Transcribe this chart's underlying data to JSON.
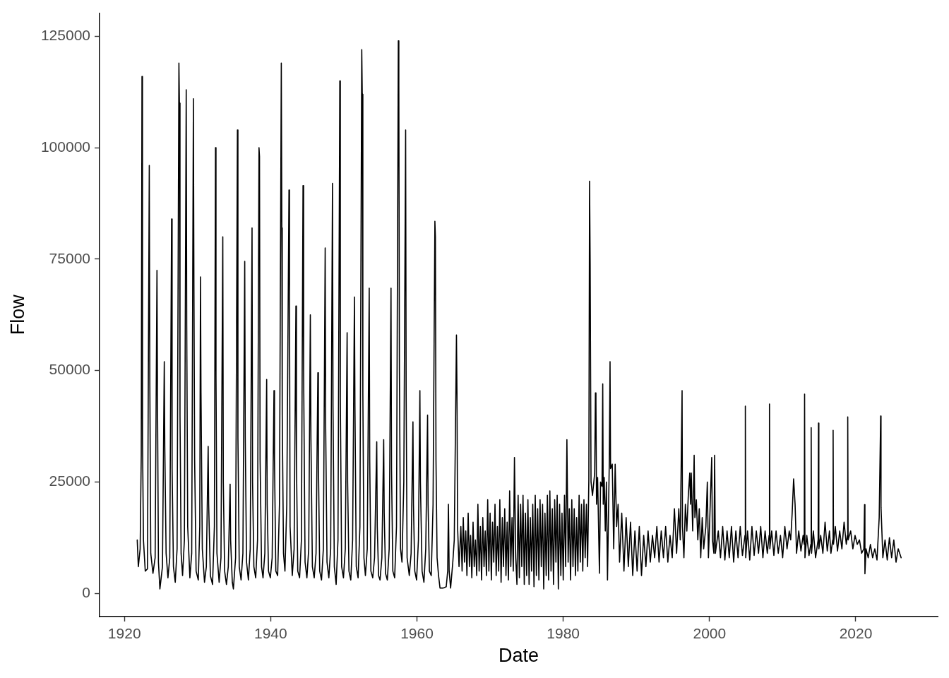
{
  "chart_data": {
    "type": "line",
    "xlabel": "Date",
    "ylabel": "Flow",
    "color": "#000000",
    "x": [
      1921.75,
      1921.9,
      1922.15,
      1922.3,
      1922.4,
      1922.47,
      1922.6,
      1922.85,
      1923.15,
      1923.4,
      1923.47,
      1923.6,
      1923.9,
      1924.2,
      1924.45,
      1924.52,
      1924.65,
      1924.85,
      1925.2,
      1925.45,
      1925.52,
      1925.7,
      1925.95,
      1926.2,
      1926.45,
      1926.52,
      1926.7,
      1926.95,
      1927.2,
      1927.45,
      1927.52,
      1927.6,
      1927.75,
      1927.95,
      1928.2,
      1928.45,
      1928.52,
      1928.65,
      1928.95,
      1929.2,
      1929.43,
      1929.5,
      1929.6,
      1929.8,
      1930.1,
      1930.3,
      1930.4,
      1930.47,
      1930.65,
      1930.95,
      1931.2,
      1931.45,
      1931.52,
      1931.75,
      1932.05,
      1932.3,
      1932.45,
      1932.52,
      1932.65,
      1932.95,
      1933.2,
      1933.45,
      1933.52,
      1933.7,
      1933.95,
      1934.2,
      1934.45,
      1934.52,
      1934.75,
      1934.9,
      1935.2,
      1935.45,
      1935.52,
      1935.7,
      1935.95,
      1936.2,
      1936.45,
      1936.52,
      1936.7,
      1936.95,
      1937.2,
      1937.45,
      1937.52,
      1937.7,
      1937.95,
      1938.2,
      1938.4,
      1938.47,
      1938.55,
      1938.75,
      1938.95,
      1939.2,
      1939.45,
      1939.52,
      1939.7,
      1939.95,
      1940.2,
      1940.45,
      1940.52,
      1940.7,
      1940.95,
      1941.2,
      1941.45,
      1941.52,
      1941.58,
      1941.75,
      1941.95,
      1942.2,
      1942.5,
      1942.57,
      1942.65,
      1942.95,
      1943.2,
      1943.45,
      1943.52,
      1943.7,
      1943.95,
      1944.2,
      1944.42,
      1944.5,
      1944.7,
      1944.95,
      1945.2,
      1945.42,
      1945.5,
      1945.7,
      1945.95,
      1946.2,
      1946.45,
      1946.52,
      1946.7,
      1946.95,
      1947.2,
      1947.45,
      1947.52,
      1947.7,
      1947.95,
      1948.2,
      1948.45,
      1948.52,
      1948.7,
      1948.95,
      1949.2,
      1949.45,
      1949.52,
      1949.7,
      1949.95,
      1950.2,
      1950.45,
      1950.52,
      1950.7,
      1950.95,
      1951.2,
      1951.45,
      1951.52,
      1951.7,
      1951.95,
      1952.2,
      1952.45,
      1952.52,
      1952.6,
      1952.75,
      1952.95,
      1953.2,
      1953.47,
      1953.54,
      1953.7,
      1953.95,
      1954.2,
      1954.5,
      1954.57,
      1954.75,
      1954.95,
      1955.2,
      1955.45,
      1955.52,
      1955.7,
      1955.95,
      1956.2,
      1956.45,
      1956.52,
      1956.7,
      1956.95,
      1957.2,
      1957.45,
      1957.52,
      1957.6,
      1957.75,
      1957.95,
      1958.2,
      1958.45,
      1958.52,
      1958.65,
      1958.95,
      1959.2,
      1959.45,
      1959.52,
      1959.7,
      1959.95,
      1960.2,
      1960.4,
      1960.47,
      1960.7,
      1960.95,
      1961.2,
      1961.45,
      1961.52,
      1961.7,
      1961.95,
      1962.2,
      1962.45,
      1962.52,
      1962.6,
      1962.75,
      1962.95,
      1963.15,
      1963.6,
      1964.0,
      1964.2,
      1964.3,
      1964.4,
      1964.6,
      1964.9,
      1965.1,
      1965.4,
      1965.47,
      1965.55,
      1965.75,
      1966.0,
      1966.17,
      1966.33,
      1966.5,
      1966.67,
      1966.83,
      1967.0,
      1967.17,
      1967.33,
      1967.5,
      1967.67,
      1967.83,
      1968.0,
      1968.17,
      1968.33,
      1968.5,
      1968.67,
      1968.83,
      1969.0,
      1969.17,
      1969.33,
      1969.5,
      1969.67,
      1969.83,
      1970.0,
      1970.17,
      1970.33,
      1970.5,
      1970.67,
      1970.83,
      1971.0,
      1971.17,
      1971.33,
      1971.5,
      1971.67,
      1971.83,
      1972.0,
      1972.17,
      1972.33,
      1972.5,
      1972.67,
      1972.83,
      1973.0,
      1973.17,
      1973.33,
      1973.5,
      1973.67,
      1973.83,
      1974.0,
      1974.17,
      1974.33,
      1974.5,
      1974.67,
      1974.83,
      1975.0,
      1975.17,
      1975.33,
      1975.5,
      1975.67,
      1975.83,
      1976.0,
      1976.17,
      1976.33,
      1976.5,
      1976.67,
      1976.83,
      1977.0,
      1977.17,
      1977.33,
      1977.5,
      1977.67,
      1977.83,
      1978.0,
      1978.17,
      1978.33,
      1978.5,
      1978.67,
      1978.83,
      1979.0,
      1979.17,
      1979.33,
      1979.5,
      1979.67,
      1979.83,
      1980.0,
      1980.17,
      1980.33,
      1980.5,
      1980.67,
      1980.83,
      1981.0,
      1981.17,
      1981.33,
      1981.5,
      1981.67,
      1981.83,
      1982.0,
      1982.17,
      1982.33,
      1982.5,
      1982.67,
      1982.83,
      1983.0,
      1983.17,
      1983.33,
      1983.5,
      1983.6,
      1983.68,
      1983.8,
      1984.0,
      1984.3,
      1984.4,
      1984.47,
      1984.55,
      1984.7,
      1984.95,
      1985.1,
      1985.3,
      1985.4,
      1985.47,
      1985.6,
      1985.75,
      1985.9,
      1986.05,
      1986.3,
      1986.4,
      1986.47,
      1986.7,
      1986.9,
      1987.1,
      1987.3,
      1987.5,
      1987.7,
      1988.0,
      1988.3,
      1988.6,
      1988.9,
      1989.2,
      1989.5,
      1989.8,
      1990.1,
      1990.4,
      1990.7,
      1991.0,
      1991.3,
      1991.6,
      1991.9,
      1992.2,
      1992.5,
      1992.8,
      1993.1,
      1993.4,
      1993.7,
      1994.0,
      1994.3,
      1994.6,
      1994.9,
      1995.2,
      1995.5,
      1995.8,
      1996.0,
      1996.25,
      1996.3,
      1996.5,
      1996.7,
      1996.9,
      1997.1,
      1997.3,
      1997.4,
      1997.5,
      1997.7,
      1997.9,
      1998.0,
      1998.2,
      1998.4,
      1998.6,
      1998.8,
      1999.0,
      1999.2,
      1999.5,
      1999.7,
      1999.85,
      2000.0,
      2000.3,
      2000.4,
      2000.6,
      2000.7,
      2000.8,
      2001.2,
      2001.5,
      2001.8,
      2002.1,
      2002.4,
      2002.7,
      2003.0,
      2003.3,
      2003.6,
      2003.9,
      2004.2,
      2004.5,
      2004.85,
      2004.9,
      2004.95,
      2005.2,
      2005.5,
      2005.8,
      2006.1,
      2006.4,
      2006.7,
      2007.0,
      2007.3,
      2007.6,
      2007.9,
      2008.15,
      2008.2,
      2008.25,
      2008.5,
      2008.8,
      2009.1,
      2009.4,
      2009.7,
      2010.0,
      2010.3,
      2010.6,
      2010.9,
      2011.1,
      2011.3,
      2011.5,
      2011.7,
      2011.9,
      2012.2,
      2012.5,
      2012.8,
      2012.95,
      2013.0,
      2013.05,
      2013.3,
      2013.6,
      2013.85,
      2013.9,
      2013.95,
      2014.2,
      2014.5,
      2014.85,
      2014.9,
      2014.95,
      2015.2,
      2015.5,
      2015.8,
      2016.1,
      2016.4,
      2016.6,
      2016.85,
      2016.9,
      2016.95,
      2017.2,
      2017.5,
      2017.8,
      2018.1,
      2018.4,
      2018.7,
      2018.85,
      2018.9,
      2018.95,
      2019.3,
      2019.6,
      2019.9,
      2020.2,
      2020.5,
      2020.8,
      2021.1,
      2021.2,
      2021.25,
      2021.4,
      2021.7,
      2022.0,
      2022.3,
      2022.6,
      2022.9,
      2023.2,
      2023.4,
      2023.45,
      2023.7,
      2024.0,
      2024.3,
      2024.6,
      2024.9,
      2025.2,
      2025.5,
      2025.8,
      2026.2
    ],
    "values": [
      12000,
      6000,
      10000,
      31000,
      116000,
      35000,
      12000,
      5000,
      5500,
      96000,
      48000,
      9000,
      4500,
      8000,
      72500,
      44000,
      7000,
      1000,
      6000,
      52000,
      33000,
      9000,
      3500,
      8000,
      84000,
      28000,
      6000,
      2500,
      10000,
      119000,
      110000,
      40000,
      9000,
      4000,
      12000,
      113000,
      60000,
      15000,
      3500,
      9000,
      111000,
      70000,
      30000,
      5000,
      3000,
      15000,
      71000,
      45000,
      10000,
      2500,
      6000,
      33000,
      20000,
      4000,
      2000,
      15000,
      100000,
      49000,
      9000,
      2500,
      8000,
      80000,
      25000,
      5000,
      2000,
      6000,
      24500,
      12000,
      2500,
      1000,
      8000,
      104000,
      35000,
      6000,
      3000,
      9000,
      74500,
      35000,
      7000,
      3000,
      10000,
      82000,
      25000,
      6000,
      3500,
      12000,
      100000,
      98000,
      30000,
      6000,
      3500,
      9000,
      48000,
      20000,
      5000,
      3500,
      8000,
      45500,
      30000,
      5000,
      4000,
      20000,
      119000,
      82000,
      40000,
      9000,
      5000,
      20000,
      90500,
      68000,
      15000,
      4000,
      10000,
      64500,
      30000,
      5000,
      3500,
      12000,
      91500,
      50000,
      7000,
      3500,
      10000,
      62500,
      35000,
      6000,
      3500,
      9000,
      49500,
      30000,
      5000,
      3000,
      10000,
      77500,
      37000,
      7000,
      3500,
      10000,
      92000,
      42000,
      6000,
      2000,
      12000,
      115000,
      44000,
      6000,
      3500,
      10000,
      58500,
      25000,
      5000,
      3000,
      12000,
      66500,
      42000,
      6000,
      3500,
      15000,
      122000,
      112000,
      45000,
      8000,
      4000,
      10000,
      68500,
      30000,
      5000,
      3500,
      8000,
      34000,
      15000,
      4000,
      3000,
      8000,
      34500,
      18000,
      4500,
      3000,
      10000,
      68500,
      28000,
      5000,
      3500,
      15000,
      124000,
      114000,
      50000,
      10000,
      7000,
      25000,
      104000,
      45000,
      8000,
      4000,
      9000,
      38500,
      20000,
      5000,
      3000,
      12000,
      45500,
      25000,
      5000,
      2500,
      10000,
      40000,
      20000,
      5000,
      4000,
      20000,
      83500,
      80000,
      30000,
      8000,
      4000,
      1200,
      1200,
      1500,
      5000,
      20000,
      5000,
      1200,
      7000,
      12000,
      58000,
      45000,
      15000,
      6000,
      15000,
      5000,
      17000,
      7000,
      14000,
      4000,
      18000,
      6000,
      13000,
      3500,
      16000,
      6000,
      12000,
      4000,
      20000,
      5000,
      15000,
      3000,
      17000,
      6000,
      14000,
      4000,
      21000,
      5000,
      18000,
      3000,
      16000,
      7000,
      20000,
      4000,
      15000,
      5000,
      21000,
      2500,
      17000,
      6000,
      19000,
      4000,
      16000,
      3000,
      23000,
      6000,
      17000,
      5000,
      30500,
      8000,
      2000,
      22000,
      3500,
      20000,
      6000,
      22000,
      2000,
      18000,
      4000,
      21000,
      2000,
      17000,
      5000,
      20000,
      1500,
      22000,
      4000,
      19000,
      3000,
      21000,
      6000,
      20000,
      1000,
      18000,
      4000,
      22000,
      3000,
      23000,
      5000,
      19000,
      2000,
      21000,
      7000,
      22000,
      1000,
      20000,
      4000,
      18000,
      3000,
      22000,
      6000,
      34500,
      7000,
      19000,
      3000,
      21000,
      6000,
      19000,
      4000,
      17000,
      5000,
      22000,
      7000,
      20000,
      5000,
      21000,
      8000,
      20000,
      6000,
      25500,
      92500,
      74000,
      25000,
      22000,
      27000,
      45000,
      43000,
      20000,
      26000,
      4500,
      25000,
      24000,
      47000,
      20000,
      26000,
      14000,
      25000,
      3000,
      30000,
      52000,
      28000,
      29000,
      10000,
      29000,
      15000,
      20000,
      7000,
      18000,
      5000,
      17000,
      6000,
      16000,
      4000,
      14000,
      5000,
      15000,
      4000,
      13000,
      6000,
      14000,
      7000,
      13000,
      8000,
      15000,
      7000,
      14000,
      8000,
      15000,
      7000,
      13000,
      8000,
      19000,
      9000,
      19000,
      12000,
      45500,
      15000,
      8000,
      20000,
      14000,
      22000,
      27000,
      20000,
      27000,
      14000,
      31000,
      17000,
      21000,
      12000,
      19000,
      8000,
      17000,
      10000,
      15000,
      25000,
      8000,
      15000,
      30500,
      12000,
      9000,
      31000,
      9000,
      14000,
      8000,
      15000,
      7500,
      14000,
      8000,
      15000,
      7000,
      14000,
      8000,
      15000,
      8500,
      13000,
      42000,
      8000,
      14000,
      7500,
      15000,
      8500,
      14000,
      9000,
      15000,
      8000,
      14000,
      9000,
      13000,
      42500,
      10000,
      14000,
      8500,
      14000,
      9000,
      13000,
      8000,
      15000,
      10000,
      14000,
      12000,
      18000,
      25700,
      20000,
      9000,
      14000,
      9500,
      13000,
      11000,
      44700,
      8000,
      13000,
      8500,
      11000,
      37200,
      9000,
      14000,
      8000,
      12000,
      38200,
      10000,
      13000,
      9000,
      16000,
      9500,
      14000,
      9000,
      12000,
      36600,
      11000,
      15000,
      9500,
      14000,
      10000,
      16000,
      11000,
      13000,
      39600,
      12000,
      14000,
      10000,
      13000,
      11000,
      12000,
      9000,
      10000,
      19900,
      4400,
      10000,
      8000,
      11000,
      8000,
      10000,
      7500,
      17000,
      39800,
      19300,
      8000,
      12000,
      7500,
      12500,
      8000,
      12000,
      7000,
      10000,
      8000
    ],
    "xlim": [
      1916.6,
      2031.2
    ],
    "ylim": [
      -5200,
      130200
    ],
    "xticks": [
      1920,
      1940,
      1960,
      1980,
      2000,
      2020
    ],
    "yticks": [
      0,
      25000,
      50000,
      75000,
      100000,
      125000
    ]
  }
}
